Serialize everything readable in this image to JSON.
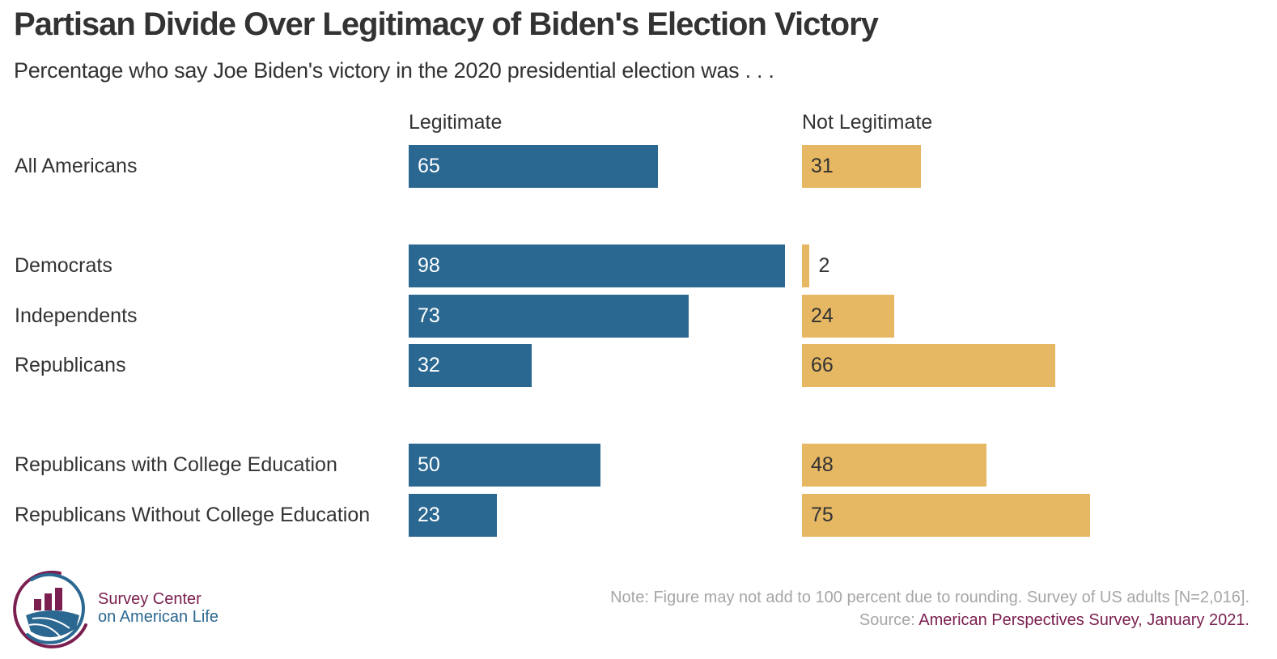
{
  "colors": {
    "legitimate": "#2b6891",
    "not_legitimate": "#e6b863",
    "text_dark": "#333333",
    "text_light_on_bar": "#ffffff",
    "note_gray": "#a6a6a6",
    "brand_maroon": "#7a1f4f",
    "brand_blue": "#2b6891"
  },
  "chart_data": {
    "type": "bar",
    "orientation": "horizontal",
    "title": "Partisan Divide Over Legitimacy of Biden's Election Victory",
    "subtitle": "Percentage who say Joe Biden's victory in the 2020 presidential election was . . .",
    "xlabel": "",
    "ylabel": "",
    "xlim": [
      0,
      100
    ],
    "grid": false,
    "categories": [
      "All Americans",
      "Democrats",
      "Independents",
      "Republicans",
      "Republicans with College Education",
      "Republicans Without College Education"
    ],
    "groups": [
      [
        0
      ],
      [
        1,
        2,
        3
      ],
      [
        4,
        5
      ]
    ],
    "series": [
      {
        "name": "Legitimate",
        "color": "#2b6891",
        "values": [
          65,
          98,
          73,
          32,
          50,
          23
        ]
      },
      {
        "name": "Not Legitimate",
        "color": "#e6b863",
        "values": [
          31,
          2,
          24,
          66,
          48,
          75
        ]
      }
    ],
    "data_labels": true
  },
  "footer": {
    "note": "Note: Figure may not add to 100 percent due to rounding. Survey of US adults [N=2,016].",
    "source_prefix": "Source: ",
    "source_link": "American Perspectives Survey, January 2021."
  },
  "logo": {
    "line1": "Survey Center",
    "line2": "on American Life"
  }
}
